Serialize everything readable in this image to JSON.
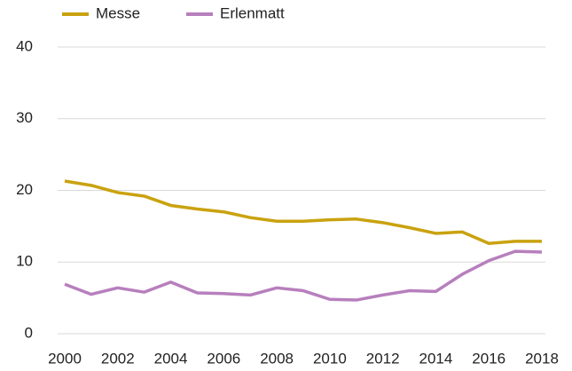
{
  "chart_data": {
    "type": "line",
    "x": [
      2000,
      2001,
      2002,
      2003,
      2004,
      2005,
      2006,
      2007,
      2008,
      2009,
      2010,
      2011,
      2012,
      2013,
      2014,
      2015,
      2016,
      2017,
      2018
    ],
    "series": [
      {
        "name": "Messe",
        "color": "#c9a20f",
        "values": [
          21.3,
          20.7,
          19.7,
          19.2,
          17.9,
          17.4,
          17.0,
          16.2,
          15.7,
          15.7,
          15.9,
          16.0,
          15.5,
          14.8,
          14.0,
          14.2,
          12.6,
          12.9,
          12.9
        ]
      },
      {
        "name": "Erlenmatt",
        "color": "#b77fbd",
        "values": [
          6.9,
          5.5,
          6.4,
          5.8,
          7.2,
          5.7,
          5.6,
          5.4,
          6.4,
          6.0,
          4.8,
          4.7,
          5.4,
          6.0,
          5.9,
          8.3,
          10.2,
          11.5,
          11.4
        ]
      }
    ],
    "xlim": [
      2000,
      2018
    ],
    "xticks": [
      2000,
      2002,
      2004,
      2006,
      2008,
      2010,
      2012,
      2014,
      2016,
      2018
    ],
    "ylim": [
      0,
      40
    ],
    "yticks": [
      0,
      10,
      20,
      30,
      40
    ],
    "grid": true,
    "legend": "top-left"
  }
}
